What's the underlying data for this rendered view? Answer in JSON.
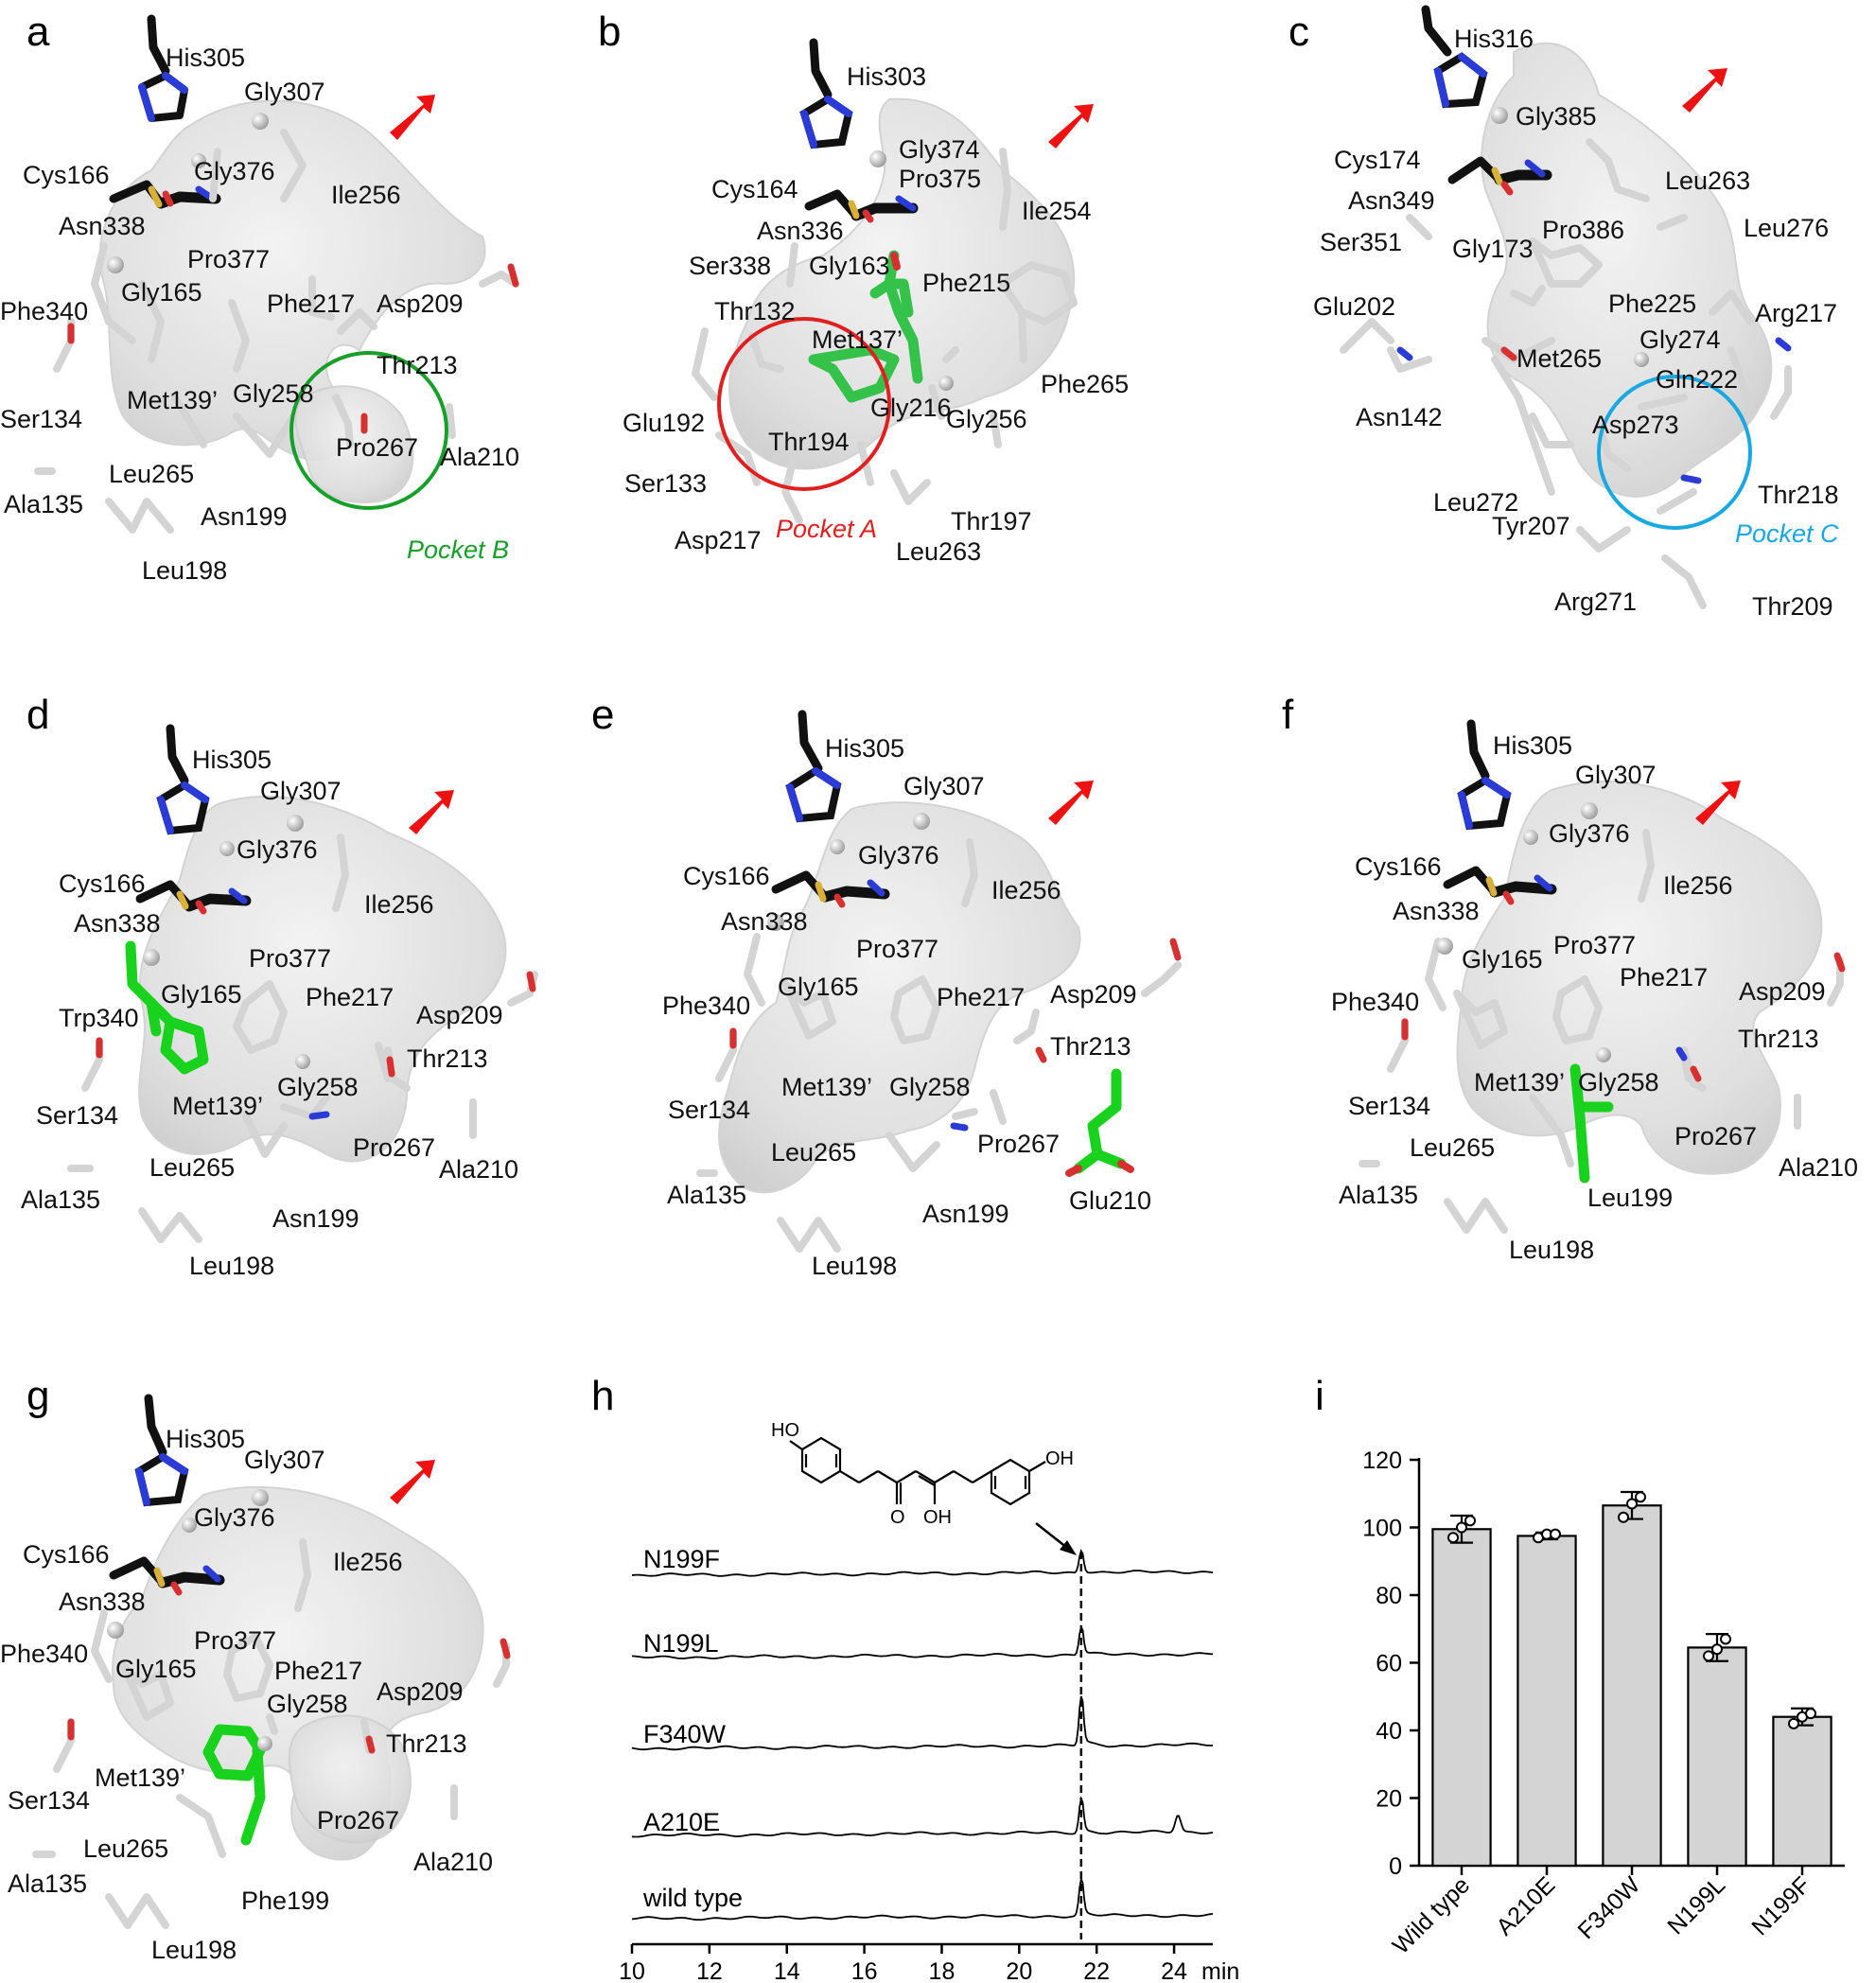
{
  "panels": [
    {
      "letter": "a",
      "labels": [
        "His305",
        "Gly307",
        "Cys166",
        "Gly376",
        "Ile256",
        "Asn338",
        "Pro377",
        "Gly165",
        "Phe217",
        "Asp209",
        "Phe340",
        "Thr213",
        "Gly258",
        "Met139’",
        "Ser134",
        "Pro267",
        "Ala210",
        "Leu265",
        "Ala135",
        "Asn199",
        "Leu198"
      ],
      "pocket": {
        "label": "Pocket B",
        "color": "#16a02a"
      }
    },
    {
      "letter": "b",
      "labels": [
        "His303",
        "Gly374",
        "Pro375",
        "Cys164",
        "Ile254",
        "Asn336",
        "Ser338",
        "Gly163",
        "Phe215",
        "Thr132",
        "Met137’",
        "Phe265",
        "Glu192",
        "Gly216",
        "Gly256",
        "Thr194",
        "Ser133",
        "Thr197",
        "Asp217",
        "Leu263"
      ],
      "pocket": {
        "label": "Pocket A",
        "color": "#e02020"
      }
    },
    {
      "letter": "c",
      "labels": [
        "His316",
        "Gly385",
        "Cys174",
        "Leu263",
        "Asn349",
        "Leu276",
        "Ser351",
        "Pro386",
        "Gly173",
        "Glu202",
        "Phe225",
        "Arg217",
        "Gly274",
        "Met265",
        "Gln222",
        "Asn142",
        "Asp273",
        "Leu272",
        "Thr218",
        "Tyr207",
        "Arg271",
        "Thr209"
      ],
      "pocket": {
        "label": "Pocket C",
        "color": "#19a8e0"
      }
    },
    {
      "letter": "d",
      "labels": [
        "His305",
        "Gly307",
        "Gly376",
        "Cys166",
        "Ile256",
        "Asn338",
        "Pro377",
        "Gly165",
        "Phe217",
        "Trp340",
        "Asp209",
        "Thr213",
        "Ser134",
        "Gly258",
        "Met139’",
        "Leu265",
        "Pro267",
        "Ala210",
        "Ala135",
        "Asn199",
        "Leu198"
      ]
    },
    {
      "letter": "e",
      "labels": [
        "His305",
        "Gly307",
        "Gly376",
        "Cys166",
        "Ile256",
        "Asn338",
        "Pro377",
        "Phe340",
        "Gly165",
        "Phe217",
        "Asp209",
        "Thr213",
        "Ser134",
        "Met139’",
        "Gly258",
        "Leu265",
        "Pro267",
        "Ala135",
        "Asn199",
        "Glu210",
        "Leu198"
      ]
    },
    {
      "letter": "f",
      "labels": [
        "His305",
        "Gly307",
        "Gly376",
        "Cys166",
        "Ile256",
        "Asn338",
        "Pro377",
        "Gly165",
        "Phe217",
        "Phe340",
        "Asp209",
        "Thr213",
        "Ser134",
        "Met139’",
        "Gly258",
        "Pro267",
        "Leu265",
        "Ala210",
        "Ala135",
        "Leu199",
        "Leu198"
      ]
    },
    {
      "letter": "g",
      "labels": [
        "His305",
        "Gly307",
        "Gly376",
        "Cys166",
        "Ile256",
        "Asn338",
        "Pro377",
        "Phe340",
        "Gly165",
        "Phe217",
        "Asp209",
        "Gly258",
        "Thr213",
        "Ser134",
        "Met139’",
        "Pro267",
        "Leu265",
        "Ala210",
        "Ala135",
        "Phe199",
        "Leu198"
      ]
    }
  ],
  "panel_h": {
    "letter": "h",
    "traces": [
      "N199F",
      "N199L",
      "F340W",
      "A210E",
      "wild type"
    ],
    "molecule_labels": {
      "left": "HO",
      "right": "OH",
      "ketone": "O",
      "enol": "OH"
    },
    "axis_unit": "min"
  },
  "chart_data": {
    "type": "bar",
    "letter": "i",
    "categories": [
      "Wild type",
      "A210E",
      "F340W",
      "N199L",
      "N199F"
    ],
    "values": [
      99.5,
      97.5,
      106.5,
      64.5,
      44
    ],
    "errors": [
      4,
      1,
      4,
      4,
      2.5
    ],
    "points": [
      [
        97,
        100,
        102
      ],
      [
        97,
        98,
        98
      ],
      [
        103,
        107,
        109
      ],
      [
        62,
        64,
        67
      ],
      [
        42,
        44,
        45
      ]
    ],
    "ylim": [
      0,
      120
    ],
    "yticks": [
      "0",
      "20",
      "40",
      "60",
      "80",
      "100",
      "120"
    ],
    "bar_color": "#d4d4d4"
  },
  "chromatogram": {
    "type": "line",
    "xticks": [
      "10",
      "12",
      "14",
      "16",
      "18",
      "20",
      "22",
      "24"
    ],
    "xlim": [
      10,
      25
    ],
    "peak_time": 21.6,
    "series": [
      {
        "name": "N199F",
        "peak_height": 0.6,
        "extra_peaks": []
      },
      {
        "name": "N199L",
        "peak_height": 0.75,
        "extra_peaks": []
      },
      {
        "name": "F340W",
        "peak_height": 1.3,
        "extra_peaks": []
      },
      {
        "name": "A210E",
        "peak_height": 0.9,
        "extra_peaks": [
          [
            24.1,
            0.45
          ]
        ]
      },
      {
        "name": "wild type",
        "peak_height": 0.95,
        "extra_peaks": []
      }
    ]
  }
}
